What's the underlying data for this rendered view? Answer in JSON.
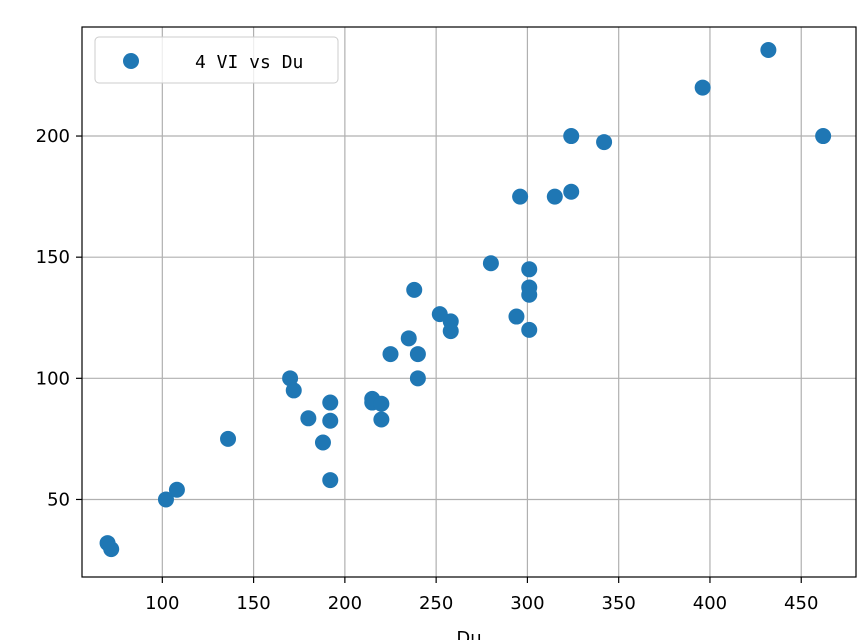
{
  "chart_data": {
    "type": "scatter",
    "xlabel": "Du",
    "ylabel": "",
    "xlim": [
      56,
      480
    ],
    "ylim": [
      18,
      245
    ],
    "x_ticks": [
      100,
      150,
      200,
      250,
      300,
      350,
      400,
      450
    ],
    "y_ticks": [
      50,
      100,
      150,
      200
    ],
    "grid": true,
    "legend": {
      "position": "top-left",
      "entries": [
        "4 VI vs Du"
      ]
    },
    "series": [
      {
        "name": "4 VI vs Du",
        "color": "#1f77b4",
        "points": [
          [
            70,
            32
          ],
          [
            72,
            29.5
          ],
          [
            102,
            50
          ],
          [
            108,
            54
          ],
          [
            136,
            75
          ],
          [
            170,
            100
          ],
          [
            172,
            95
          ],
          [
            180,
            83.5
          ],
          [
            188,
            73.5
          ],
          [
            192,
            90
          ],
          [
            192,
            82.5
          ],
          [
            192,
            58
          ],
          [
            215,
            91.5
          ],
          [
            215,
            90
          ],
          [
            220,
            89.5
          ],
          [
            220,
            83
          ],
          [
            225,
            110
          ],
          [
            235,
            116.5
          ],
          [
            238,
            136.5
          ],
          [
            240,
            110
          ],
          [
            240,
            100
          ],
          [
            252,
            126.5
          ],
          [
            258,
            123.5
          ],
          [
            258,
            119.5
          ],
          [
            280,
            147.5
          ],
          [
            294,
            125.5
          ],
          [
            296,
            175
          ],
          [
            301,
            145
          ],
          [
            301,
            137.5
          ],
          [
            301,
            134.5
          ],
          [
            301,
            120
          ],
          [
            315,
            175
          ],
          [
            324,
            200
          ],
          [
            324,
            177
          ],
          [
            342,
            197.5
          ],
          [
            396,
            220
          ],
          [
            432,
            235.5
          ],
          [
            462,
            200
          ]
        ]
      }
    ]
  }
}
